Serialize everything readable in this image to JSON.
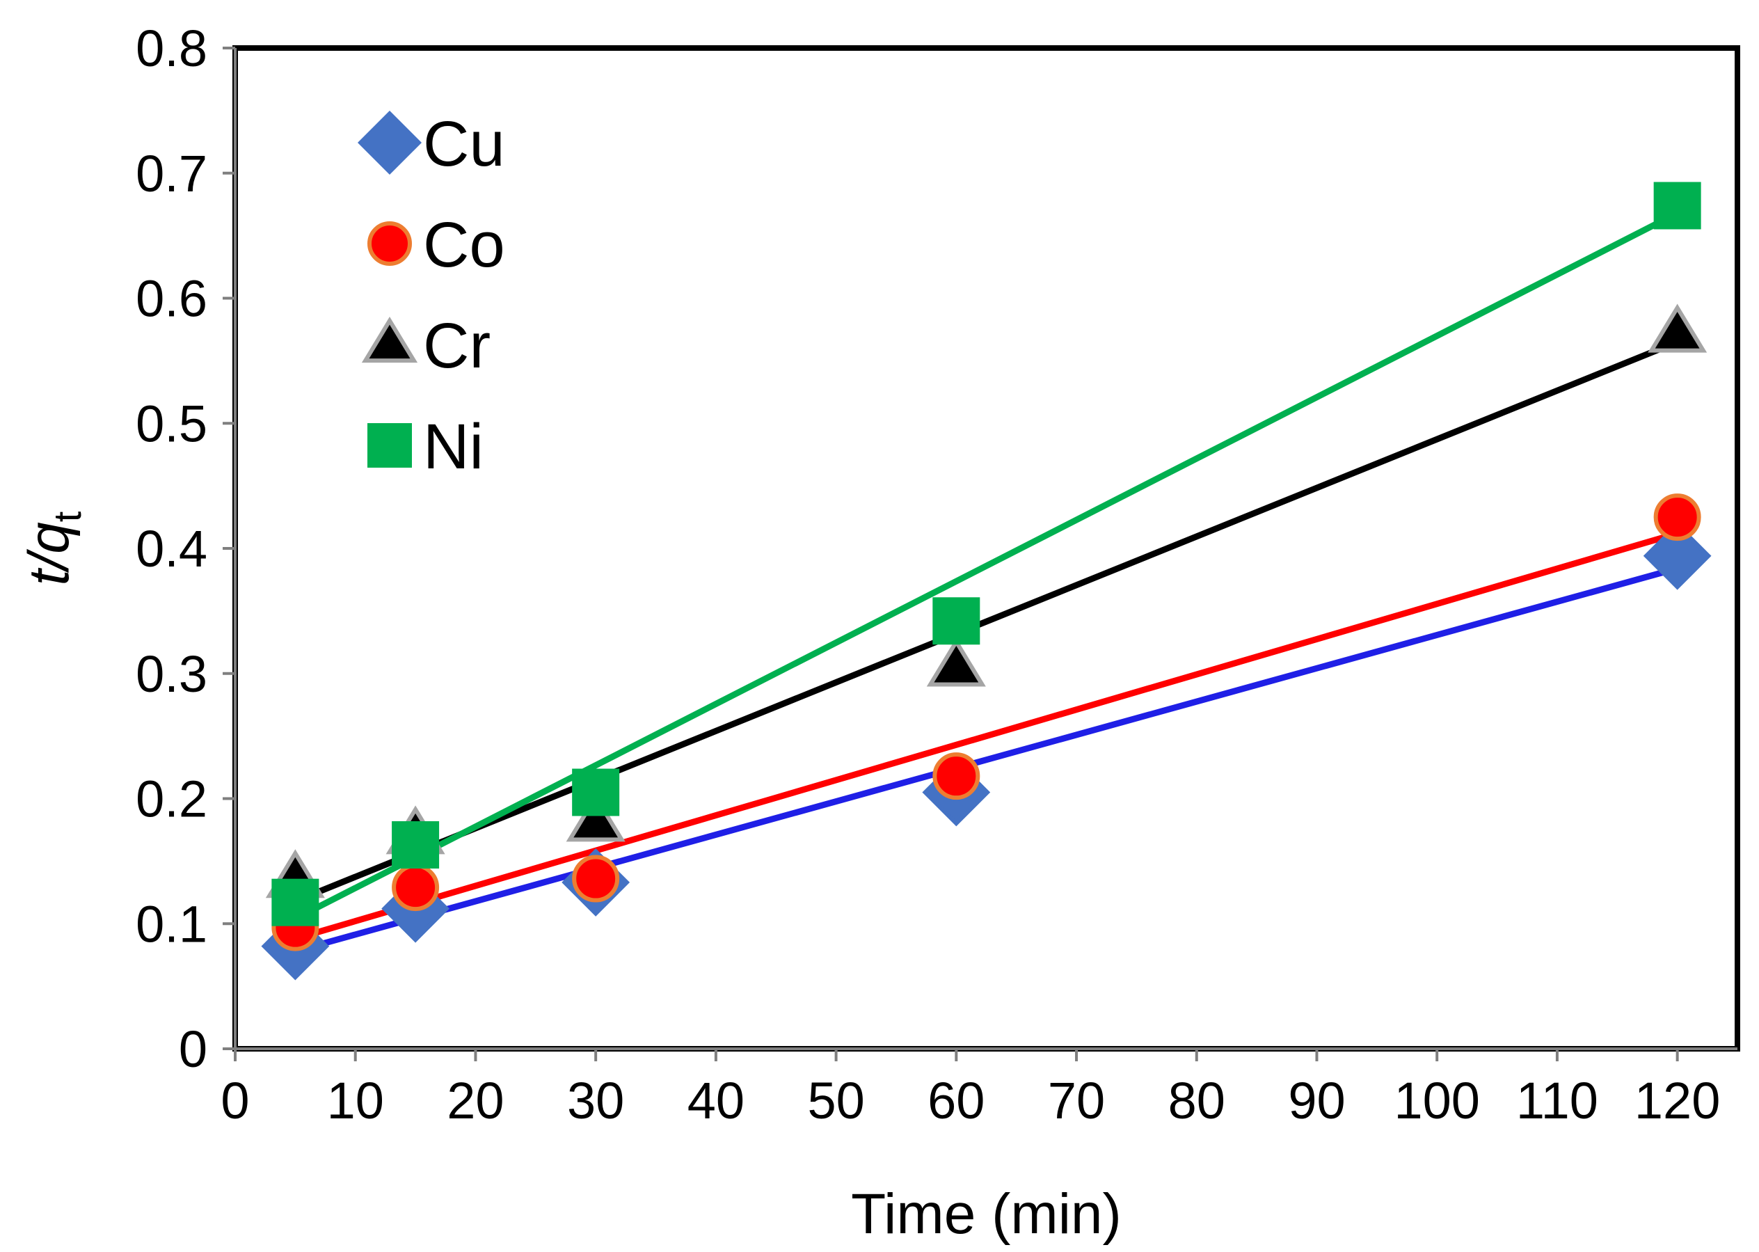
{
  "chart_data": {
    "type": "scatter",
    "title": "",
    "xlabel": "Time (min)",
    "ylabel": {
      "main": "t/q",
      "sub": "t"
    },
    "xlim": [
      0,
      125
    ],
    "ylim": [
      0,
      0.8
    ],
    "xticks": [
      0,
      10,
      20,
      30,
      40,
      50,
      60,
      70,
      80,
      90,
      100,
      110,
      120
    ],
    "xtick_labels": [
      "0",
      "10",
      "20",
      "30",
      "40",
      "50",
      "60",
      "70",
      "80",
      "90",
      "100",
      "110",
      "120"
    ],
    "yticks": [
      0,
      0.1,
      0.2,
      0.3,
      0.4,
      0.5,
      0.6,
      0.7,
      0.8
    ],
    "ytick_labels": [
      "0",
      "0.1",
      "0.2",
      "0.3",
      "0.4",
      "0.5",
      "0.6",
      "0.7",
      "0.8"
    ],
    "grid": false,
    "legend_position": "top-left",
    "x": [
      5,
      15,
      30,
      60,
      120
    ],
    "series": [
      {
        "name": "Cu",
        "marker": "diamond",
        "color": "#4472C4",
        "edge": "#4472C4",
        "line_color": "#1F1FE6",
        "values": [
          0.082,
          0.112,
          0.133,
          0.205,
          0.394
        ],
        "fit": [
          0.078,
          0.384
        ]
      },
      {
        "name": "Co",
        "marker": "circle",
        "color": "#FF0000",
        "edge": "#ED7D31",
        "line_color": "#FF0000",
        "values": [
          0.097,
          0.129,
          0.136,
          0.218,
          0.425
        ],
        "fit": [
          0.088,
          0.412
        ]
      },
      {
        "name": "Cr",
        "marker": "triangle",
        "color": "#000000",
        "edge": "#A5A5A5",
        "line_color": "#000000",
        "values": [
          0.136,
          0.171,
          0.181,
          0.305,
          0.572
        ],
        "fit": [
          0.118,
          0.565
        ]
      },
      {
        "name": "Ni",
        "marker": "square",
        "color": "#00B050",
        "edge": "#00B050",
        "line_color": "#00B050",
        "values": [
          0.117,
          0.163,
          0.205,
          0.342,
          0.674
        ],
        "fit": [
          0.104,
          0.668
        ]
      }
    ]
  }
}
